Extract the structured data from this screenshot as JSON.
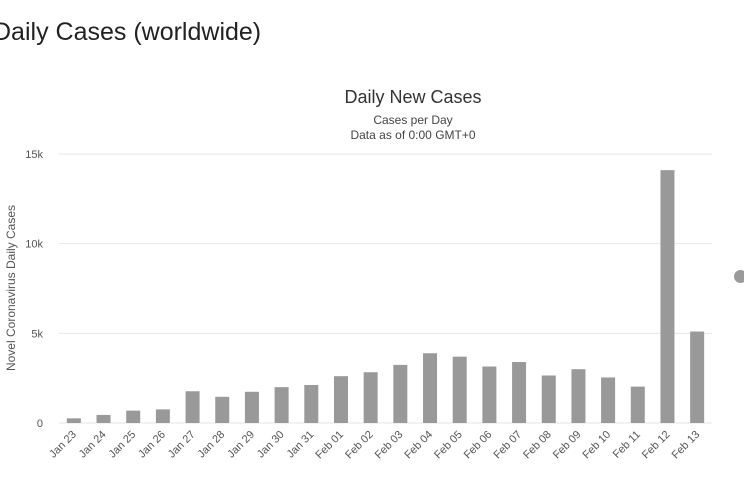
{
  "page": {
    "heading": "Daily Cases (worldwide)"
  },
  "chart_data": {
    "type": "bar",
    "title": "Daily New Cases",
    "subtitle_lines": [
      "Cases per Day",
      "Data as of 0:00 GMT+0"
    ],
    "ylabel": "Novel Coronavirus Daily Cases",
    "xlabel": "",
    "ylim": [
      0,
      15000
    ],
    "yticks": [
      0,
      5000,
      10000,
      15000
    ],
    "ytick_labels": [
      "0",
      "5k",
      "10k",
      "15k"
    ],
    "grid": true,
    "legend": "none",
    "bar_color": "#999999",
    "categories": [
      "Jan 23",
      "Jan 24",
      "Jan 25",
      "Jan 26",
      "Jan 27",
      "Jan 28",
      "Jan 29",
      "Jan 30",
      "Jan 31",
      "Feb 01",
      "Feb 02",
      "Feb 03",
      "Feb 04",
      "Feb 05",
      "Feb 06",
      "Feb 07",
      "Feb 08",
      "Feb 09",
      "Feb 10",
      "Feb 11",
      "Feb 12",
      "Feb 13"
    ],
    "values": [
      260,
      450,
      690,
      760,
      1770,
      1460,
      1740,
      2000,
      2120,
      2610,
      2830,
      3240,
      3890,
      3700,
      3150,
      3400,
      2650,
      3000,
      2540,
      2030,
      14100,
      5100
    ]
  }
}
